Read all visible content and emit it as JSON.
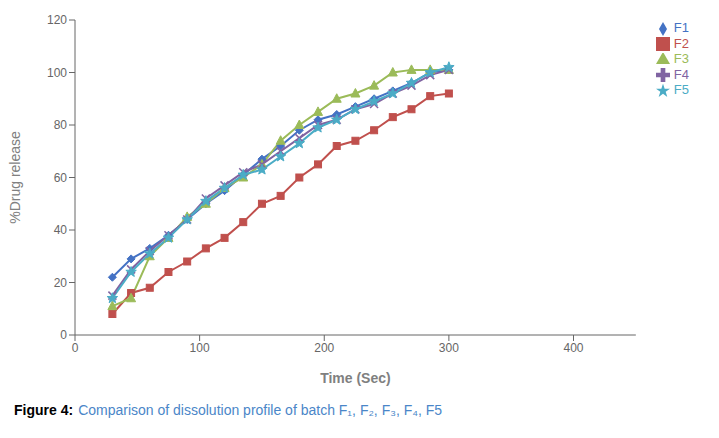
{
  "chart_data": {
    "type": "line",
    "xlabel": "Time (Sec)",
    "ylabel": "%Drug release",
    "annotations": [
      {
        "text": "Figure 4:"
      },
      {
        "text": "Comparison of dissolution profile of batch F₁, F₂, F₃, F₄, F5",
        "color": "#4a86c8"
      }
    ],
    "x": [
      30,
      45,
      60,
      75,
      90,
      105,
      120,
      135,
      150,
      165,
      180,
      195,
      210,
      225,
      240,
      255,
      270,
      285,
      300
    ],
    "xlim": [
      0,
      450
    ],
    "ylim": [
      0,
      120
    ],
    "xticks": [
      0,
      100,
      200,
      300,
      400
    ],
    "yticks": [
      0,
      20,
      40,
      60,
      80,
      100,
      120
    ],
    "grid": false,
    "legend": "right",
    "series": [
      {
        "name": "F1",
        "color": "#4472C4",
        "marker": "diamond",
        "values": [
          22,
          29,
          33,
          38,
          44,
          50,
          55,
          61,
          67,
          72,
          78,
          82,
          84,
          87,
          90,
          93,
          96,
          100,
          101
        ]
      },
      {
        "name": "F2",
        "color": "#C0504D",
        "marker": "square",
        "values": [
          8,
          16,
          18,
          24,
          28,
          33,
          37,
          43,
          50,
          53,
          60,
          65,
          72,
          74,
          78,
          83,
          86,
          91,
          92
        ]
      },
      {
        "name": "F3",
        "color": "#9BBB59",
        "marker": "triangle",
        "values": [
          11,
          14,
          30,
          37,
          45,
          50,
          56,
          60,
          65,
          74,
          80,
          85,
          90,
          92,
          95,
          100,
          101,
          101,
          101
        ]
      },
      {
        "name": "F4",
        "color": "#8064A2",
        "marker": "x",
        "values": [
          15,
          25,
          32,
          38,
          44,
          52,
          57,
          62,
          65,
          70,
          75,
          80,
          82,
          86,
          88,
          92,
          95,
          99,
          101
        ]
      },
      {
        "name": "F5",
        "color": "#4BACC6",
        "marker": "star",
        "values": [
          14,
          24,
          31,
          37,
          44,
          51,
          56,
          61,
          63,
          68,
          73,
          79,
          82,
          86,
          89,
          92,
          96,
          100,
          102
        ]
      }
    ]
  }
}
